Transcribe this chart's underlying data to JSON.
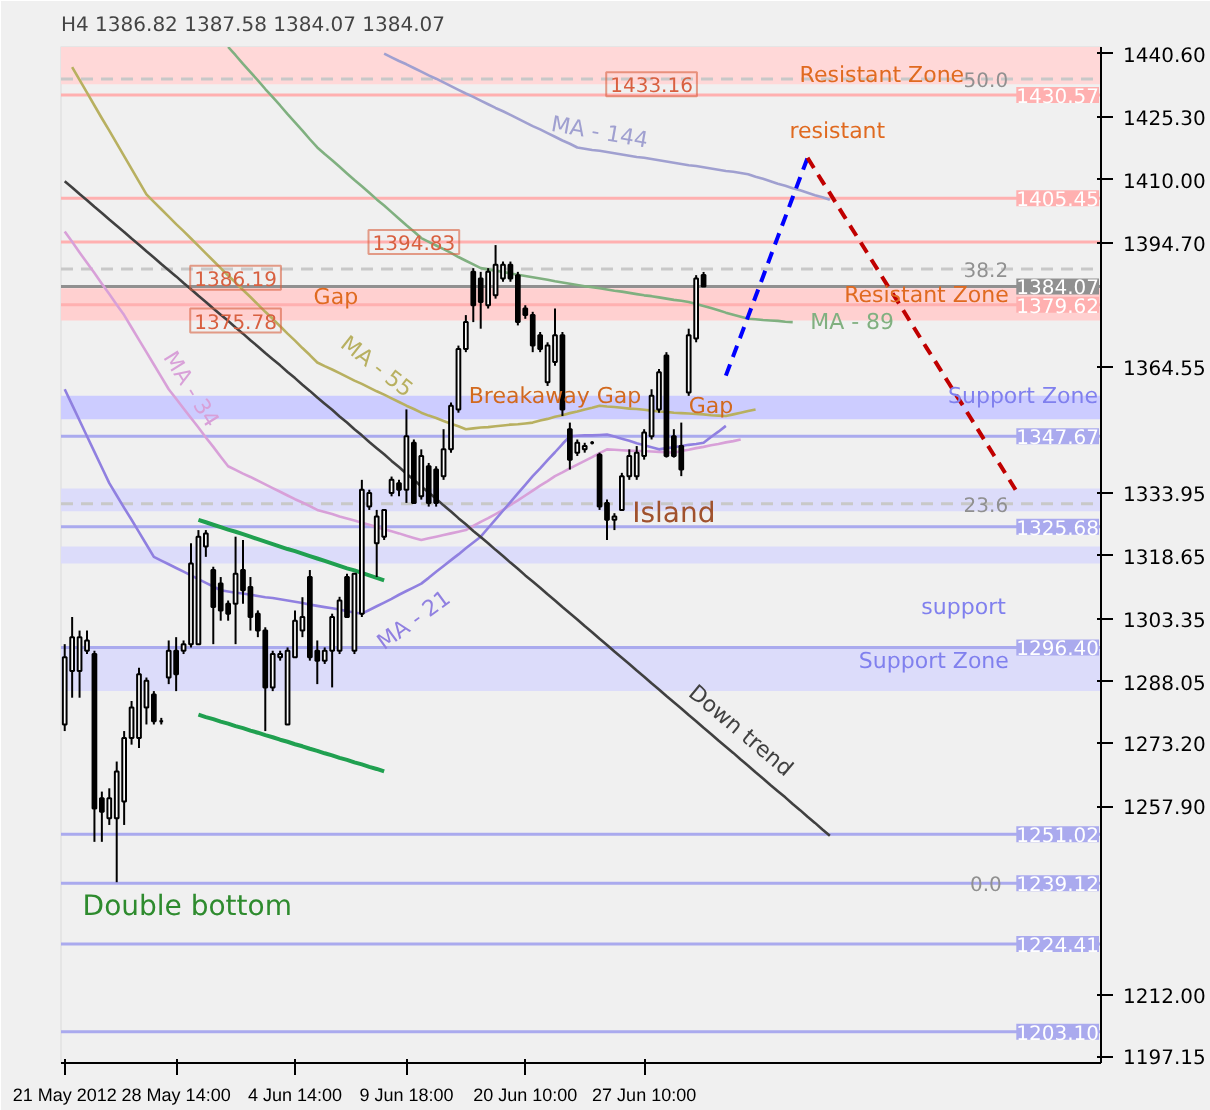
{
  "chart_data": {
    "type": "candlestick",
    "title": "H4 1386.82 1387.58 1384.07 1384.07",
    "categories": [
      "21 May 2012",
      null,
      null,
      null,
      null,
      null,
      null,
      null,
      null,
      null,
      null,
      null,
      null,
      null,
      null,
      "28 May 14:00",
      null,
      null,
      null,
      null,
      null,
      null,
      null,
      null,
      null,
      null,
      null,
      null,
      null,
      null,
      null,
      "4 Jun 14:00",
      null,
      null,
      null,
      null,
      null,
      null,
      null,
      null,
      null,
      null,
      null,
      null,
      null,
      null,
      "9 Jun 18:00",
      null,
      null,
      null,
      null,
      null,
      null,
      null,
      null,
      null,
      null,
      null,
      null,
      null,
      null,
      null,
      "20 Jun 10:00",
      null,
      null,
      null,
      null,
      null,
      null,
      null,
      null,
      null,
      null,
      null,
      null,
      null,
      null,
      null,
      "27 Jun 10:00",
      null,
      null,
      null,
      null,
      null,
      null,
      null,
      null,
      null,
      null,
      null,
      null,
      null,
      null,
      null,
      null,
      null,
      null,
      null,
      null,
      null,
      null,
      null,
      null,
      null,
      null,
      null,
      null,
      null,
      null,
      null,
      null,
      null,
      null,
      null,
      null,
      null,
      null,
      null,
      null,
      null,
      null,
      null,
      null,
      null,
      null,
      null,
      null,
      null,
      null,
      null,
      null,
      null,
      null,
      null,
      null,
      null,
      null,
      null,
      null,
      null
    ],
    "ohlc": [
      [
        1277.7,
        1297.2,
        1276.1,
        1294.0
      ],
      [
        1290.7,
        1303.8,
        1284.2,
        1298.9
      ],
      [
        1290.7,
        1300.5,
        1284.2,
        1298.9
      ],
      [
        1295.6,
        1300.5,
        1294.8,
        1298.1
      ],
      [
        1294.8,
        1295.6,
        1249.2,
        1257.3
      ],
      [
        1259.8,
        1261.4,
        1249.2,
        1256.5
      ],
      [
        1254.9,
        1262.2,
        1253.3,
        1259.8
      ],
      [
        1254.9,
        1268.7,
        1239.4,
        1266.3
      ],
      [
        1259.0,
        1276.1,
        1253.3,
        1274.4
      ],
      [
        1274.4,
        1283.4,
        1272.8,
        1281.8
      ],
      [
        1274.4,
        1291.5,
        1272.0,
        1289.9
      ],
      [
        1281.8,
        1289.1,
        1277.7,
        1288.3
      ],
      [
        1285.0,
        1285.8,
        1277.7,
        1278.5
      ],
      [
        1278.5,
        1279.3,
        1277.7,
        1278.5
      ],
      [
        1289.1,
        1298.1,
        1287.5,
        1295.6
      ],
      [
        1295.6,
        1298.9,
        1285.8,
        1289.9
      ],
      [
        1295.6,
        1298.1,
        1294.8,
        1297.2
      ],
      [
        1297.2,
        1321.7,
        1296.4,
        1316.8
      ],
      [
        1297.2,
        1324.9,
        1297.2,
        1323.3
      ],
      [
        1320.9,
        1324.9,
        1318.4,
        1324.1
      ],
      [
        1315.2,
        1316.0,
        1297.2,
        1306.2
      ],
      [
        1311.9,
        1313.5,
        1302.9,
        1305.4
      ],
      [
        1307.0,
        1307.8,
        1302.9,
        1304.6
      ],
      [
        1307.0,
        1323.3,
        1297.2,
        1314.3
      ],
      [
        1315.2,
        1322.5,
        1307.0,
        1310.3
      ],
      [
        1311.1,
        1313.5,
        1300.5,
        1303.8
      ],
      [
        1304.6,
        1305.4,
        1298.9,
        1300.5
      ],
      [
        1300.5,
        1301.3,
        1276.1,
        1286.7
      ],
      [
        1286.7,
        1295.6,
        1285.8,
        1294.8
      ],
      [
        1294.0,
        1295.6,
        1293.2,
        1294.8
      ],
      [
        1277.7,
        1296.4,
        1277.7,
        1295.6
      ],
      [
        1294.0,
        1305.4,
        1294.0,
        1302.9
      ],
      [
        1300.5,
        1308.6,
        1298.9,
        1303.8
      ],
      [
        1313.5,
        1315.2,
        1293.2,
        1294.0
      ],
      [
        1295.6,
        1298.1,
        1287.5,
        1293.2
      ],
      [
        1293.2,
        1296.4,
        1292.4,
        1295.6
      ],
      [
        1295.6,
        1304.6,
        1286.7,
        1303.8
      ],
      [
        1295.6,
        1308.7,
        1294.8,
        1307.8
      ],
      [
        1313.5,
        1314.3,
        1303.8,
        1303.8
      ],
      [
        1295.6,
        1314.3,
        1294.8,
        1314.3
      ],
      [
        1304.6,
        1337.1,
        1303.8,
        1334.7
      ],
      [
        1330.6,
        1334.7,
        1329.8,
        1333.9
      ],
      [
        1321.7,
        1329.8,
        1313.5,
        1328.2
      ],
      [
        1323.3,
        1329.8,
        1322.5,
        1329.8
      ],
      [
        1333.9,
        1337.9,
        1333.1,
        1337.1
      ],
      [
        1336.3,
        1337.1,
        1333.1,
        1334.7
      ],
      [
        1334.7,
        1354.2,
        1331.5,
        1347.7
      ],
      [
        1346.1,
        1346.9,
        1331.5,
        1331.5
      ],
      [
        1333.1,
        1344.5,
        1332.3,
        1342.9
      ],
      [
        1340.4,
        1341.2,
        1330.6,
        1331.5
      ],
      [
        1339.6,
        1340.4,
        1330.6,
        1331.5
      ],
      [
        1338.0,
        1349.4,
        1337.1,
        1344.5
      ],
      [
        1344.5,
        1355.9,
        1343.7,
        1355.1
      ],
      [
        1354.2,
        1369.7,
        1353.4,
        1368.9
      ],
      [
        1368.9,
        1377.1,
        1368.1,
        1375.4
      ],
      [
        1387.6,
        1388.5,
        1375.4,
        1379.5
      ],
      [
        1386.0,
        1387.6,
        1373.8,
        1380.3
      ],
      [
        1379.5,
        1388.5,
        1378.7,
        1387.6
      ],
      [
        1381.9,
        1394.1,
        1381.1,
        1389.3
      ],
      [
        1386.0,
        1390.1,
        1385.2,
        1389.3
      ],
      [
        1389.3,
        1390.1,
        1385.2,
        1386.0
      ],
      [
        1386.8,
        1387.6,
        1374.6,
        1375.4
      ],
      [
        1378.7,
        1379.5,
        1376.2,
        1377.1
      ],
      [
        1377.1,
        1377.9,
        1368.1,
        1369.7
      ],
      [
        1372.2,
        1373.0,
        1368.1,
        1368.9
      ],
      [
        1360.8,
        1370.5,
        1359.9,
        1369.7
      ],
      [
        1365.7,
        1378.7,
        1364.8,
        1372.2
      ],
      [
        1372.2,
        1373.0,
        1352.6,
        1354.2
      ],
      [
        1349.4,
        1351.0,
        1339.6,
        1342.0
      ],
      [
        1343.7,
        1346.9,
        1342.9,
        1346.1
      ],
      [
        1344.5,
        1346.1,
        1343.7,
        1345.3
      ],
      [
        1346.1,
        1346.5,
        1345.7,
        1346.1
      ],
      [
        1343.2,
        1343.7,
        1329.8,
        1330.6
      ],
      [
        1331.5,
        1332.3,
        1322.5,
        1327.4
      ],
      [
        1327.4,
        1329.0,
        1324.9,
        1328.2
      ],
      [
        1329.8,
        1338.8,
        1329.8,
        1338.0
      ],
      [
        1338.0,
        1344.5,
        1337.1,
        1342.9
      ],
      [
        1338.0,
        1345.3,
        1337.1,
        1343.7
      ],
      [
        1342.9,
        1349.4,
        1342.0,
        1348.6
      ],
      [
        1347.7,
        1359.1,
        1346.9,
        1357.5
      ],
      [
        1354.2,
        1364.0,
        1353.4,
        1363.2
      ],
      [
        1367.3,
        1368.1,
        1342.5,
        1342.9
      ],
      [
        1347.7,
        1349.4,
        1342.5,
        1342.9
      ],
      [
        1345.3,
        1351.0,
        1338.0,
        1339.6
      ],
      [
        1358.3,
        1373.8,
        1357.5,
        1372.2
      ],
      [
        1371.4,
        1386.8,
        1370.5,
        1386.0
      ],
      [
        1386.82,
        1387.58,
        1384.07,
        1384.07
      ],
      null,
      null,
      null,
      null,
      null,
      null,
      null,
      null,
      null,
      null,
      null,
      null,
      null,
      null,
      null,
      null,
      null,
      null,
      null,
      null,
      null,
      null,
      null,
      null,
      null,
      null,
      null,
      null,
      null,
      null,
      null,
      null,
      null,
      null,
      null,
      null,
      null,
      null,
      null,
      null,
      null,
      null,
      null,
      null,
      null,
      null,
      null,
      null,
      null,
      null,
      null,
      null,
      null
    ],
    "series": [
      {
        "name": "MA - 144",
        "type": "line",
        "color": "#a0a0d0",
        "values": [
          null,
          null,
          null,
          null,
          null,
          null,
          null,
          null,
          null,
          null,
          null,
          null,
          null,
          null,
          null,
          null,
          null,
          null,
          null,
          null,
          null,
          null,
          null,
          null,
          null,
          null,
          null,
          null,
          null,
          null,
          null,
          null,
          null,
          null,
          null,
          null,
          null,
          null,
          null,
          null,
          null,
          null,
          null,
          1440.6,
          1439.7,
          1438.8,
          1438.0,
          1437.1,
          1436.2,
          1435.3,
          1434.5,
          1433.6,
          1432.7,
          1431.8,
          1430.9,
          1430.1,
          1429.2,
          1428.3,
          1427.4,
          1426.6,
          1425.7,
          1424.8,
          1423.9,
          1423.0,
          1422.2,
          1421.3,
          1420.4,
          1419.5,
          1418.7,
          1417.8,
          1417.5,
          1417.2,
          1417.0,
          1416.7,
          1416.4,
          1416.1,
          1415.8,
          1415.5,
          1415.3,
          1415.0,
          1414.7,
          1414.4,
          1414.1,
          1413.8,
          1413.5,
          1413.3,
          1413.0,
          1412.7,
          1412.4,
          1412.1,
          1411.9,
          1411.6,
          1411.3,
          1410.7,
          1410.2,
          1409.6,
          1409.0,
          1408.5,
          1407.9,
          1407.4,
          1406.8,
          1406.2,
          1405.7,
          1405.1,
          null,
          null,
          null,
          null,
          null,
          null,
          null,
          null,
          null,
          null,
          null,
          null,
          null,
          null,
          null,
          null,
          null,
          null,
          null,
          null,
          null,
          null,
          null,
          null,
          null,
          null,
          null,
          null,
          null,
          null,
          null,
          null,
          null,
          null,
          null,
          null
        ]
      },
      {
        "name": "MA - 89",
        "type": "line",
        "color": "#80b080",
        "values": [
          null,
          null,
          null,
          null,
          null,
          null,
          null,
          null,
          null,
          null,
          null,
          null,
          null,
          null,
          null,
          null,
          null,
          null,
          null,
          null,
          null,
          null,
          1442.2,
          1440.2,
          1438.1,
          1436.1,
          1434.1,
          1432.0,
          1430.0,
          1428.0,
          1425.9,
          1423.9,
          1421.9,
          1419.8,
          1417.8,
          1416.2,
          1414.7,
          1413.1,
          1411.5,
          1409.9,
          1408.4,
          1406.8,
          1405.2,
          1403.7,
          1402.1,
          1400.5,
          1398.9,
          1397.4,
          1395.8,
          1394.9,
          1394.0,
          1393.1,
          1392.2,
          1391.2,
          1390.3,
          1389.4,
          1388.5,
          1388.2,
          1387.9,
          1387.6,
          1387.2,
          1386.9,
          1386.6,
          1386.3,
          1386.0,
          1385.7,
          1385.3,
          1385.0,
          1384.7,
          1384.4,
          1384.1,
          1383.9,
          1383.6,
          1383.3,
          1383.0,
          1382.8,
          1382.5,
          1382.2,
          1381.9,
          1381.7,
          1381.4,
          1381.1,
          1380.8,
          1380.6,
          1380.3,
          1379.8,
          1379.3,
          1378.8,
          1378.3,
          1377.7,
          1377.2,
          1376.7,
          1376.2,
          1376.1,
          1375.9,
          1375.8,
          1375.7,
          1375.5,
          1375.4,
          null,
          null,
          null,
          null,
          null,
          null,
          null,
          null,
          null,
          null,
          null,
          null,
          null,
          null,
          null,
          null,
          null,
          null,
          null,
          null,
          null,
          null,
          null,
          null,
          null,
          null,
          null,
          null,
          null,
          null,
          null,
          null,
          null,
          null,
          null,
          null,
          null,
          null,
          null,
          null,
          null
        ]
      },
      {
        "name": "MA - 55",
        "type": "line",
        "color": "#b8b060",
        "values": [
          null,
          1437.3,
          1434.2,
          1431.1,
          1428.0,
          1424.9,
          1421.9,
          1418.8,
          1415.7,
          1412.6,
          1409.5,
          1406.4,
          1404.6,
          1402.8,
          1401.0,
          1399.2,
          1397.5,
          1395.7,
          1393.9,
          1392.1,
          1390.3,
          1388.5,
          1386.7,
          1385.0,
          1383.2,
          1381.5,
          1379.7,
          1377.9,
          1376.2,
          1374.4,
          1372.6,
          1370.9,
          1369.1,
          1367.4,
          1365.6,
          1364.7,
          1363.9,
          1363.0,
          1362.1,
          1361.2,
          1360.4,
          1359.5,
          1358.6,
          1357.8,
          1356.9,
          1356.0,
          1355.1,
          1354.3,
          1353.4,
          1352.7,
          1352.1,
          1351.4,
          1350.7,
          1350.1,
          1349.4,
          1349.6,
          1349.8,
          1349.9,
          1350.1,
          1350.3,
          1350.5,
          1350.6,
          1350.8,
          1351.0,
          1351.5,
          1351.9,
          1352.4,
          1352.8,
          1353.3,
          1353.7,
          1354.2,
          1354.6,
          1355.1,
          1354.9,
          1354.8,
          1354.6,
          1354.4,
          1354.3,
          1354.1,
          1353.9,
          1353.7,
          1353.6,
          1353.4,
          1353.3,
          1353.2,
          1353.1,
          1353.0,
          1352.8,
          1352.7,
          1352.6,
          1353.0,
          1353.4,
          1353.8,
          1354.2,
          null,
          null,
          null,
          null,
          null,
          null,
          null,
          null,
          null,
          null,
          null,
          null,
          null,
          null,
          null,
          null,
          null,
          null,
          null,
          null,
          null,
          null,
          null,
          null,
          null,
          null,
          null,
          null,
          null,
          null,
          null,
          null,
          null,
          null,
          null,
          null,
          null,
          null,
          null,
          null,
          null,
          null,
          null,
          null,
          null,
          null
        ]
      },
      {
        "name": "MA - 34",
        "type": "line",
        "color": "#d8a0d8",
        "values": [
          1397.4,
          1394.9,
          1392.3,
          1389.8,
          1387.3,
          1384.7,
          1382.2,
          1379.6,
          1377.1,
          1374.1,
          1371.1,
          1368.1,
          1365.1,
          1362.1,
          1359.1,
          1356.8,
          1354.4,
          1352.1,
          1349.8,
          1347.4,
          1345.1,
          1342.7,
          1340.4,
          1339.5,
          1338.6,
          1337.8,
          1336.9,
          1336.0,
          1335.1,
          1334.2,
          1333.3,
          1332.4,
          1331.6,
          1330.7,
          1329.8,
          1329.3,
          1328.8,
          1328.2,
          1327.7,
          1327.2,
          1326.7,
          1326.2,
          1325.6,
          1325.1,
          1324.6,
          1324.1,
          1323.5,
          1323.0,
          1322.5,
          1322.9,
          1323.3,
          1323.7,
          1324.1,
          1324.5,
          1324.9,
          1325.9,
          1326.9,
          1327.8,
          1328.8,
          1329.8,
          1331.0,
          1332.1,
          1333.3,
          1334.5,
          1335.7,
          1336.8,
          1338.0,
          1338.9,
          1339.9,
          1340.8,
          1341.7,
          1342.6,
          1343.6,
          1344.5,
          1344.4,
          1344.3,
          1344.2,
          1344.1,
          1344.1,
          1344.0,
          1343.9,
          1343.8,
          1343.7,
          1344.1,
          1344.4,
          1344.8,
          1345.1,
          1345.5,
          1345.8,
          1346.2,
          1346.5,
          1346.9,
          null,
          null,
          null,
          null,
          null,
          null,
          null,
          null,
          null,
          null,
          null,
          null,
          null,
          null,
          null,
          null,
          null,
          null,
          null,
          null,
          null,
          null,
          null,
          null,
          null,
          null,
          null,
          null,
          null,
          null,
          null,
          null,
          null,
          null,
          null,
          null,
          null,
          null,
          null,
          null,
          null,
          null,
          null,
          null,
          null,
          null,
          null,
          null
        ]
      },
      {
        "name": "MA - 21",
        "type": "line",
        "color": "#9080e0",
        "values": [
          1359.1,
          1355.3,
          1351.5,
          1347.7,
          1343.9,
          1340.1,
          1336.3,
          1333.3,
          1330.3,
          1327.4,
          1324.4,
          1321.4,
          1318.4,
          1317.5,
          1316.6,
          1315.7,
          1314.8,
          1313.9,
          1313.0,
          1312.1,
          1311.2,
          1310.3,
          1310.0,
          1309.7,
          1309.5,
          1309.2,
          1308.9,
          1308.6,
          1308.4,
          1308.1,
          1307.8,
          1307.5,
          1307.2,
          1306.8,
          1306.5,
          1306.2,
          1305.9,
          1305.6,
          1305.2,
          1304.9,
          1304.6,
          1305.5,
          1306.4,
          1307.3,
          1308.2,
          1309.2,
          1310.1,
          1311.0,
          1311.9,
          1313.3,
          1314.8,
          1316.2,
          1317.6,
          1319.0,
          1320.5,
          1321.9,
          1323.3,
          1325.4,
          1327.5,
          1329.6,
          1331.7,
          1333.8,
          1335.9,
          1338.0,
          1339.9,
          1341.9,
          1343.8,
          1345.8,
          1347.7,
          1347.8,
          1347.9,
          1347.9,
          1348.0,
          1348.1,
          1347.6,
          1347.1,
          1346.6,
          1346.0,
          1345.5,
          1345.0,
          1344.5,
          1344.8,
          1345.0,
          1345.3,
          1345.6,
          1345.8,
          1346.1,
          1347.5,
          1348.8,
          1350.2,
          null,
          null,
          null,
          null,
          null,
          null,
          null,
          null,
          null,
          null,
          null,
          null,
          null,
          null,
          null,
          null,
          null,
          null,
          null,
          null,
          null,
          null,
          null,
          null,
          null,
          null,
          null,
          null,
          null,
          null,
          null,
          null,
          null,
          null,
          null,
          null,
          null,
          null,
          null,
          null,
          null,
          null,
          null,
          null,
          null,
          null,
          null,
          null,
          null,
          null
        ]
      },
      {
        "name": "Down trend",
        "type": "line",
        "color": "#404040",
        "values": [
          1409.6,
          1408.1,
          1406.5,
          1405.0,
          1403.4,
          1401.9,
          1400.3,
          1398.8,
          1397.3,
          1395.7,
          1394.2,
          1392.6,
          1391.1,
          1389.5,
          1388.0,
          1386.5,
          1384.9,
          1383.4,
          1381.8,
          1380.3,
          1378.7,
          1377.2,
          1375.7,
          1374.1,
          1372.6,
          1371.0,
          1369.5,
          1367.9,
          1366.4,
          1364.9,
          1363.3,
          1361.8,
          1360.2,
          1358.7,
          1357.1,
          1355.6,
          1354.1,
          1352.5,
          1351.0,
          1349.4,
          1347.9,
          1346.3,
          1344.8,
          1343.3,
          1341.7,
          1340.2,
          1338.6,
          1337.1,
          1335.5,
          1334.0,
          1332.5,
          1330.9,
          1329.4,
          1327.8,
          1326.3,
          1324.7,
          1323.2,
          1321.7,
          1320.1,
          1318.6,
          1317.0,
          1315.5,
          1313.9,
          1312.4,
          1310.9,
          1309.3,
          1307.8,
          1306.2,
          1304.7,
          1303.2,
          1301.6,
          1300.1,
          1298.5,
          1297.0,
          1295.4,
          1293.9,
          1292.4,
          1290.8,
          1289.3,
          1287.7,
          1286.2,
          1284.6,
          1283.1,
          1281.6,
          1280.0,
          1278.5,
          1276.9,
          1275.4,
          1273.8,
          1272.3,
          1270.8,
          1269.2,
          1267.7,
          1266.1,
          1264.6,
          1263.0,
          1261.5,
          1260.0,
          1258.4,
          1256.9,
          1255.3,
          1253.8,
          1252.2,
          1250.7,
          null,
          null,
          null,
          null,
          null,
          null,
          null,
          null,
          null,
          null,
          null,
          null,
          null,
          null,
          null,
          null,
          null,
          null,
          null,
          null,
          null,
          null,
          null,
          null,
          null,
          null,
          null,
          null,
          null,
          null,
          null,
          null,
          null,
          null,
          null,
          null
        ]
      },
      {
        "type": "line",
        "color": "#20a050",
        "values": [
          null,
          null,
          null,
          null,
          null,
          null,
          null,
          null,
          null,
          null,
          null,
          null,
          null,
          null,
          null,
          null,
          null,
          null,
          1327.4,
          1326.8,
          1326.2,
          1325.6,
          1325.0,
          1324.5,
          1323.9,
          1323.3,
          1322.7,
          1322.1,
          1321.5,
          1320.9,
          1320.3,
          1319.8,
          1319.2,
          1318.6,
          1318.0,
          1317.4,
          1316.8,
          1316.2,
          1315.6,
          1315.1,
          1314.5,
          1313.9,
          1313.3,
          1312.7,
          null,
          null,
          null,
          null,
          null,
          null,
          null,
          null,
          null,
          null,
          null,
          null,
          null,
          null,
          null,
          null,
          null,
          null,
          null,
          null,
          null,
          null,
          null,
          null,
          null,
          null,
          null,
          null,
          null,
          null,
          null,
          null,
          null,
          null,
          null,
          null,
          null,
          null,
          null,
          null,
          null,
          null,
          null,
          null,
          null,
          null,
          null,
          null,
          null,
          null,
          null,
          null,
          null,
          null,
          null,
          null,
          null,
          null,
          null,
          null,
          null,
          null,
          null,
          null,
          null,
          null,
          null,
          null,
          null,
          null,
          null,
          null,
          null,
          null,
          null,
          null,
          null,
          null,
          null,
          null,
          null,
          null,
          null,
          null,
          null,
          null,
          null,
          null,
          null,
          null,
          null,
          null,
          null,
          null,
          null,
          null
        ]
      },
      {
        "type": "line",
        "color": "#20a050",
        "values": [
          null,
          null,
          null,
          null,
          null,
          null,
          null,
          null,
          null,
          null,
          null,
          null,
          null,
          null,
          null,
          null,
          null,
          null,
          1280.1,
          1279.5,
          1279.0,
          1278.4,
          1277.9,
          1277.3,
          1276.8,
          1276.2,
          1275.7,
          1275.1,
          1274.6,
          1274.0,
          1273.5,
          1272.9,
          1272.4,
          1271.8,
          1271.3,
          1270.7,
          1270.2,
          1269.6,
          1269.1,
          1268.5,
          1268.0,
          1267.4,
          1266.9,
          1266.3,
          null,
          null,
          null,
          null,
          null,
          null,
          null,
          null,
          null,
          null,
          null,
          null,
          null,
          null,
          null,
          null,
          null,
          null,
          null,
          null,
          null,
          null,
          null,
          null,
          null,
          null,
          null,
          null,
          null,
          null,
          null,
          null,
          null,
          null,
          null,
          null,
          null,
          null,
          null,
          null,
          null,
          null,
          null,
          null,
          null,
          null,
          null,
          null,
          null,
          null,
          null,
          null,
          null,
          null,
          null,
          null,
          null,
          null,
          null,
          null,
          null,
          null,
          null,
          null,
          null,
          null,
          null,
          null,
          null,
          null,
          null,
          null,
          null,
          null,
          null,
          null,
          null,
          null,
          null,
          null,
          null,
          null,
          null,
          null,
          null,
          null,
          null,
          null,
          null,
          null,
          null,
          null,
          null,
          null,
          null,
          null
        ]
      },
      {
        "type": "line",
        "color": "#0000ff",
        "line_style": "dashed",
        "values": [
          null,
          null,
          null,
          null,
          null,
          null,
          null,
          null,
          null,
          null,
          null,
          null,
          null,
          null,
          null,
          null,
          null,
          null,
          null,
          null,
          null,
          null,
          null,
          null,
          null,
          null,
          null,
          null,
          null,
          null,
          null,
          null,
          null,
          null,
          null,
          null,
          null,
          null,
          null,
          null,
          null,
          null,
          null,
          null,
          null,
          null,
          null,
          null,
          null,
          null,
          null,
          null,
          null,
          null,
          null,
          null,
          null,
          null,
          null,
          null,
          null,
          null,
          null,
          null,
          null,
          null,
          null,
          null,
          null,
          null,
          null,
          null,
          null,
          null,
          null,
          null,
          null,
          null,
          null,
          null,
          null,
          null,
          null,
          null,
          null,
          null,
          null,
          null,
          null,
          1362.4,
          1367.2,
          1372.0,
          1376.8,
          1381.6,
          1386.4,
          1391.3,
          1396.1,
          1400.9,
          1405.7,
          1410.5,
          1415.3,
          null,
          null,
          null,
          null,
          null,
          null,
          null,
          null,
          null,
          null,
          null,
          null,
          null,
          null,
          null,
          null,
          null,
          null,
          null,
          null,
          null,
          null,
          null,
          null,
          null,
          null,
          null,
          null,
          null,
          null,
          null,
          null,
          null,
          null,
          null,
          null,
          null,
          null,
          null
        ]
      },
      {
        "type": "line",
        "color": "#c00000",
        "line_style": "dashed",
        "values": [
          null,
          null,
          null,
          null,
          null,
          null,
          null,
          null,
          null,
          null,
          null,
          null,
          null,
          null,
          null,
          null,
          null,
          null,
          null,
          null,
          null,
          null,
          null,
          null,
          null,
          null,
          null,
          null,
          null,
          null,
          null,
          null,
          null,
          null,
          null,
          null,
          null,
          null,
          null,
          null,
          null,
          null,
          null,
          null,
          null,
          null,
          null,
          null,
          null,
          null,
          null,
          null,
          null,
          null,
          null,
          null,
          null,
          null,
          null,
          null,
          null,
          null,
          null,
          null,
          null,
          null,
          null,
          null,
          null,
          null,
          null,
          null,
          null,
          null,
          null,
          null,
          null,
          null,
          null,
          null,
          null,
          null,
          null,
          null,
          null,
          null,
          null,
          null,
          null,
          null,
          null,
          null,
          null,
          null,
          null,
          null,
          null,
          null,
          null,
          null,
          1415.3,
          1412.4,
          1409.5,
          1406.7,
          1403.8,
          1400.9,
          1398.0,
          1395.2,
          1392.3,
          1389.4,
          1386.5,
          1383.6,
          1380.8,
          1377.9,
          1375.0,
          1372.1,
          1369.2,
          1366.4,
          1363.5,
          1360.6,
          1357.7,
          1354.9,
          1352.0,
          1349.1,
          1346.2,
          1343.3,
          1340.5,
          1337.6,
          1334.7,
          null,
          null,
          null,
          null,
          null,
          null,
          null,
          null,
          null,
          null,
          null
        ]
      }
    ],
    "ylim": [
      1195.5,
      1442.2
    ],
    "yticks": [
      {
        "value": 1440.6,
        "label": "1440.60"
      },
      {
        "value": 1425.3,
        "label": "1425.30"
      },
      {
        "value": 1410.0,
        "label": "1410.00"
      },
      {
        "value": 1394.7,
        "label": "1394.70"
      },
      {
        "value": 1364.55,
        "label": "1364.55"
      },
      {
        "value": 1333.95,
        "label": "1333.95"
      },
      {
        "value": 1318.65,
        "label": "1318.65"
      },
      {
        "value": 1303.35,
        "label": "1303.35"
      },
      {
        "value": 1288.05,
        "label": "1288.05"
      },
      {
        "value": 1273.2,
        "label": "1273.20"
      },
      {
        "value": 1257.9,
        "label": "1257.90"
      },
      {
        "value": 1212.0,
        "label": "1212.00"
      },
      {
        "value": 1197.15,
        "label": "1197.15"
      }
    ],
    "bands": [
      {
        "axis": "y",
        "from": 1433.16,
        "to": 1442.2,
        "color": "#ffd8d8"
      },
      {
        "axis": "y",
        "from": 1375.78,
        "to": 1383.6,
        "color": "#ffd0d0"
      },
      {
        "axis": "y",
        "from": 1351.8,
        "to": 1357.5,
        "color": "#ccccff"
      },
      {
        "axis": "y",
        "from": 1329.5,
        "to": 1335.0,
        "color": "#dcdcfa"
      },
      {
        "axis": "y",
        "from": 1316.8,
        "to": 1320.9,
        "color": "#dcdcfa"
      },
      {
        "axis": "y",
        "from": 1285.8,
        "to": 1296.4,
        "color": "#dcdcfa"
      }
    ],
    "ref_lines": [
      {
        "axis": "y",
        "value": 1430.57,
        "label": "1430.57",
        "color": "#ffb0b0"
      },
      {
        "axis": "y",
        "value": 1405.45,
        "label": "1405.45",
        "color": "#ffb0b0"
      },
      {
        "axis": "y",
        "value": 1394.83,
        "color": "#ffb0b0"
      },
      {
        "axis": "y",
        "value": 1384.07,
        "label": "1384.07",
        "color": "#909090"
      },
      {
        "axis": "y",
        "value": 1379.62,
        "label": "1379.62",
        "color": "#ffb0b0"
      },
      {
        "axis": "y",
        "value": 1347.67,
        "label": "1347.67",
        "color": "#aaaaee"
      },
      {
        "axis": "y",
        "value": 1325.68,
        "label": "1325.68",
        "color": "#aaaaee"
      },
      {
        "axis": "y",
        "value": 1296.4,
        "label": "1296.40",
        "color": "#aaaaee"
      },
      {
        "axis": "y",
        "value": 1251.02,
        "label": "1251.02",
        "color": "#aaaaee"
      },
      {
        "axis": "y",
        "value": 1239.12,
        "label": "1239.12",
        "color": "#aaaaee"
      },
      {
        "axis": "y",
        "value": 1224.41,
        "label": "1224.41",
        "color": "#aaaaee"
      },
      {
        "axis": "y",
        "value": 1203.1,
        "label": "1203.10",
        "color": "#aaaaee"
      },
      {
        "axis": "y",
        "value": 1434.4,
        "color": "#c8c8c8",
        "line_style": "dashed"
      },
      {
        "axis": "y",
        "value": 1388.3,
        "color": "#c8c8c8",
        "line_style": "dashed"
      },
      {
        "axis": "y",
        "value": 1331.3,
        "color": "#c8c8c8",
        "line_style": "dashed"
      }
    ],
    "annotations": [
      {
        "text": "Resistant Zone",
        "y": 1435.4
      },
      "resistant",
      {
        "text": "Resistant Zone",
        "y": 1382.0
      },
      {
        "text": "Gap",
        "y": 1381.5
      },
      {
        "text": "1386.19",
        "y": 1386.19
      },
      {
        "text": "1375.78",
        "y": 1375.78
      },
      {
        "text": "1394.83",
        "y": 1394.83
      },
      {
        "text": "1433.16",
        "y": 1433.16
      },
      {
        "text": "Breakaway Gap",
        "y": 1357.4
      },
      {
        "text": "Gap",
        "y": 1355.1
      },
      {
        "text": "Support Zone",
        "y": 1357.4
      },
      {
        "text": "Island",
        "y": 1328.7
      },
      "support",
      "Support Zone",
      "Double bottom",
      {
        "text": "50.0",
        "y": 1434.4
      },
      {
        "text": "38.2",
        "y": 1388.3
      },
      {
        "text": "23.6",
        "y": 1331.3
      },
      {
        "text": "0.0",
        "y": 1239.12
      }
    ]
  }
}
